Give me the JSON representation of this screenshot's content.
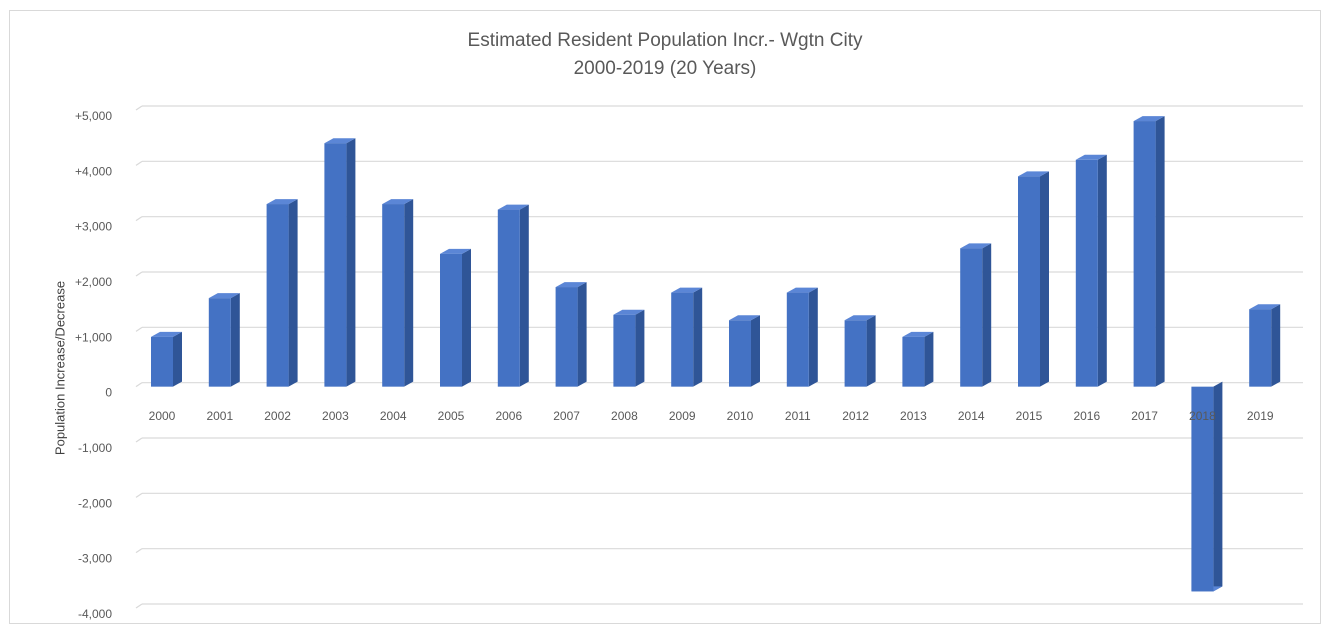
{
  "chart_data": {
    "type": "bar",
    "title": "Estimated Resident Population Incr.- Wgtn City",
    "subtitle": "2000-2019 (20 Years)",
    "xlabel": "",
    "ylabel": "Population Increase/Decrease",
    "categories": [
      "2000",
      "2001",
      "2002",
      "2003",
      "2004",
      "2005",
      "2006",
      "2007",
      "2008",
      "2009",
      "2010",
      "2011",
      "2012",
      "2013",
      "2014",
      "2015",
      "2016",
      "2017",
      "2018",
      "2019"
    ],
    "values": [
      900,
      1600,
      3300,
      4400,
      3300,
      2400,
      3200,
      1800,
      1300,
      1700,
      1200,
      1700,
      1200,
      900,
      2500,
      3800,
      4100,
      4800,
      -3700,
      1400
    ],
    "ylim": [
      -4000,
      5000
    ],
    "yticks": [
      5000,
      4000,
      3000,
      2000,
      1000,
      0,
      -1000,
      -2000,
      -3000,
      -4000
    ],
    "ytick_labels": [
      "+5,000",
      "+4,000",
      "+3,000",
      "+2,000",
      "+1,000",
      "0",
      "-1,000",
      "-2,000",
      "-3,000",
      "-4,000"
    ],
    "grid": true,
    "legend": "none",
    "bar_color": "#4472c4"
  }
}
